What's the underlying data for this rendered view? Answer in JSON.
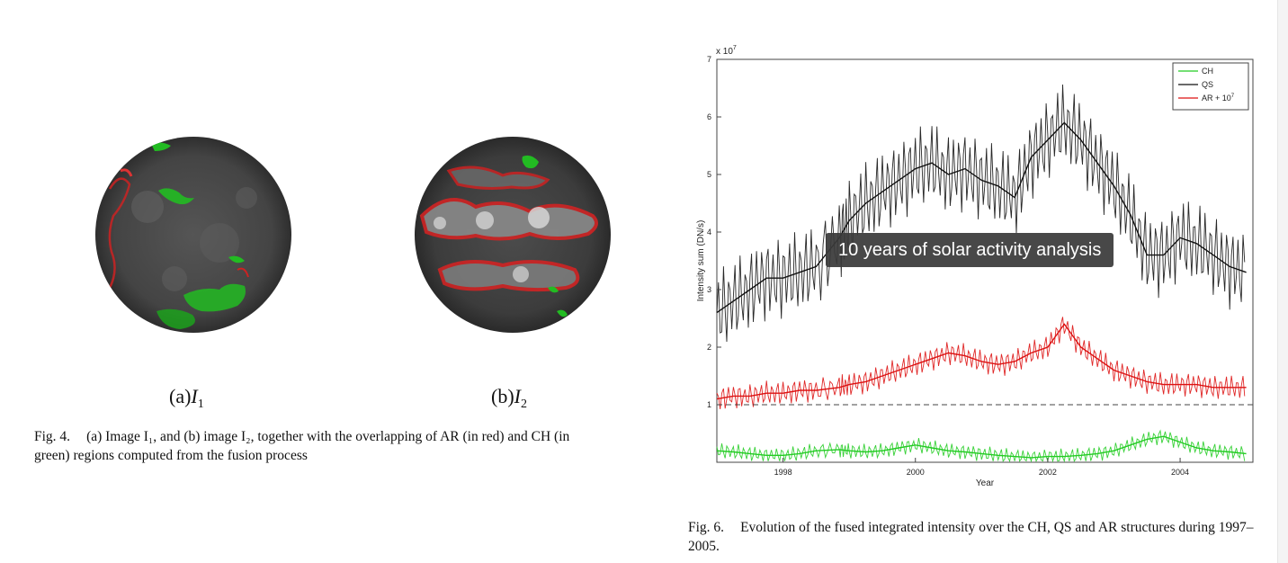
{
  "fig4": {
    "subcaption_a_prefix": "(a)",
    "subcaption_a_var": "I",
    "subcaption_a_sub": "1",
    "subcaption_b_prefix": "(b)",
    "subcaption_b_var": "I",
    "subcaption_b_sub": "2",
    "caption_label": "Fig. 4.",
    "caption_text": "(a) Image I₁, and (b) image I₂, together with the overlapping of AR (in red) and CH (in green) regions computed from the fusion process"
  },
  "fig6": {
    "caption_label": "Fig. 6.",
    "caption_text": "Evolution of the fused integrated intensity over the CH, QS and AR structures during 1997–2005."
  },
  "tooltip": {
    "text": "10 years of solar activity analysis"
  },
  "colors": {
    "ch": "#22cc22",
    "qs": "#111111",
    "ar": "#dd1111",
    "disk": "#4a4a4a"
  },
  "chart_data": {
    "type": "line",
    "xlabel": "Year",
    "ylabel": "Intensity sum (DN/s)",
    "y_multiplier": "x 10",
    "y_multiplier_exp": "7",
    "xlim": [
      1997.0,
      2005.1
    ],
    "ylim": [
      0,
      7
    ],
    "xticks": [
      1998,
      2000,
      2002,
      2004
    ],
    "yticks": [
      1,
      2,
      3,
      4,
      5,
      6,
      7
    ],
    "dashed_reference_y": 1,
    "legend_position": "top-right",
    "legend": [
      {
        "label": "CH",
        "sup": "",
        "color": "#22cc22"
      },
      {
        "label": "QS",
        "sup": "",
        "color": "#111111"
      },
      {
        "label": "AR + 10",
        "sup": "7",
        "color": "#dd1111"
      }
    ],
    "series": [
      {
        "name": "QS",
        "x": [
          1997.0,
          1997.25,
          1997.5,
          1997.75,
          1998.0,
          1998.25,
          1998.5,
          1998.85,
          1999.0,
          1999.25,
          1999.5,
          1999.75,
          2000.0,
          2000.25,
          2000.5,
          2000.75,
          2001.0,
          2001.25,
          2001.5,
          2001.75,
          2002.0,
          2002.25,
          2002.5,
          2002.75,
          2003.0,
          2003.25,
          2003.5,
          2003.75,
          2004.0,
          2004.25,
          2004.5,
          2004.75,
          2005.0
        ],
        "y": [
          2.6,
          2.8,
          3.0,
          3.2,
          3.2,
          3.3,
          3.4,
          3.9,
          4.2,
          4.5,
          4.7,
          4.9,
          5.1,
          5.2,
          5.0,
          5.1,
          4.9,
          4.8,
          4.6,
          5.3,
          5.6,
          5.9,
          5.6,
          5.2,
          4.8,
          4.3,
          3.6,
          3.6,
          3.9,
          3.8,
          3.6,
          3.4,
          3.3
        ]
      },
      {
        "name": "AR + 10^7",
        "x": [
          1997.0,
          1997.25,
          1997.5,
          1997.75,
          1998.0,
          1998.25,
          1998.5,
          1998.85,
          1999.0,
          1999.25,
          1999.5,
          1999.75,
          2000.0,
          2000.25,
          2000.5,
          2000.75,
          2001.0,
          2001.25,
          2001.5,
          2001.75,
          2002.0,
          2002.25,
          2002.5,
          2002.75,
          2003.0,
          2003.25,
          2003.5,
          2003.75,
          2004.0,
          2004.25,
          2004.5,
          2004.75,
          2005.0
        ],
        "y": [
          1.1,
          1.15,
          1.15,
          1.2,
          1.2,
          1.25,
          1.25,
          1.3,
          1.35,
          1.4,
          1.5,
          1.6,
          1.7,
          1.8,
          1.9,
          1.85,
          1.75,
          1.7,
          1.75,
          1.9,
          2.0,
          2.4,
          2.0,
          1.8,
          1.6,
          1.5,
          1.4,
          1.35,
          1.35,
          1.35,
          1.3,
          1.3,
          1.3
        ]
      },
      {
        "name": "CH",
        "x": [
          1997.0,
          1997.25,
          1997.5,
          1997.75,
          1998.0,
          1998.25,
          1998.5,
          1998.85,
          1999.0,
          1999.25,
          1999.5,
          1999.75,
          2000.0,
          2000.25,
          2000.5,
          2000.75,
          2001.0,
          2001.25,
          2001.5,
          2001.75,
          2002.0,
          2002.25,
          2002.5,
          2002.75,
          2003.0,
          2003.25,
          2003.5,
          2003.75,
          2004.0,
          2004.25,
          2004.5,
          2004.75,
          2005.0
        ],
        "y": [
          0.2,
          0.18,
          0.15,
          0.12,
          0.12,
          0.15,
          0.2,
          0.22,
          0.2,
          0.18,
          0.2,
          0.25,
          0.3,
          0.25,
          0.2,
          0.18,
          0.15,
          0.12,
          0.1,
          0.08,
          0.1,
          0.1,
          0.12,
          0.15,
          0.2,
          0.3,
          0.4,
          0.45,
          0.35,
          0.25,
          0.2,
          0.18,
          0.15
        ]
      }
    ]
  }
}
